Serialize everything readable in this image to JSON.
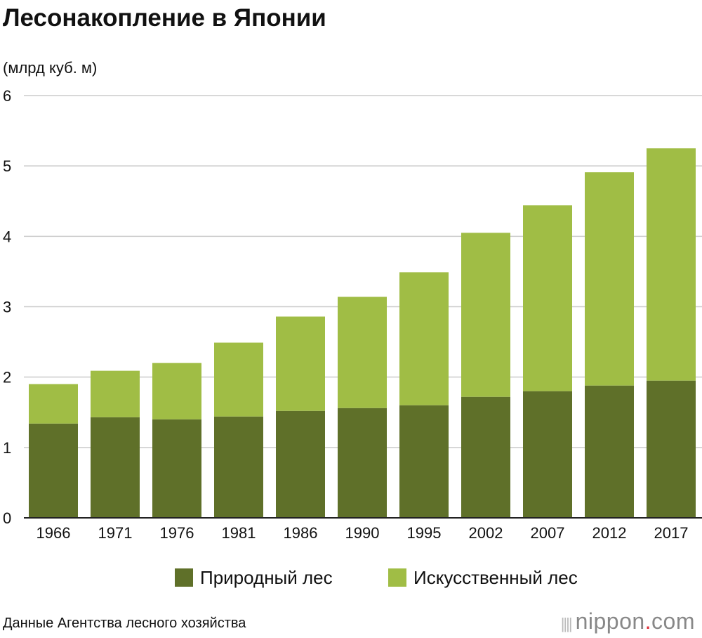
{
  "chart_data": {
    "type": "bar",
    "stacked": true,
    "title": "Лесонакопление в Японии",
    "ylabel": "(млрд куб. м)",
    "xlabel": "",
    "ylim": [
      0,
      6
    ],
    "yticks": [
      "0",
      "1",
      "2",
      "3",
      "4",
      "5",
      "6"
    ],
    "grid": true,
    "legend_position": "bottom",
    "categories": [
      "1966",
      "1971",
      "1976",
      "1981",
      "1986",
      "1990",
      "1995",
      "2002",
      "2007",
      "2012",
      "2017"
    ],
    "series": [
      {
        "name": "Природный лес",
        "color": "#5f7029",
        "values": [
          1.34,
          1.43,
          1.4,
          1.44,
          1.52,
          1.56,
          1.6,
          1.72,
          1.8,
          1.88,
          1.95
        ]
      },
      {
        "name": "Искусственный лес",
        "color": "#a0bd45",
        "values": [
          0.56,
          0.66,
          0.8,
          1.05,
          1.34,
          1.58,
          1.89,
          2.33,
          2.64,
          3.03,
          3.3
        ]
      }
    ],
    "source": "Данные Агентства лесного хозяйства"
  },
  "logo": {
    "text1": "nippon",
    "dot": ".",
    "text2": "com"
  }
}
